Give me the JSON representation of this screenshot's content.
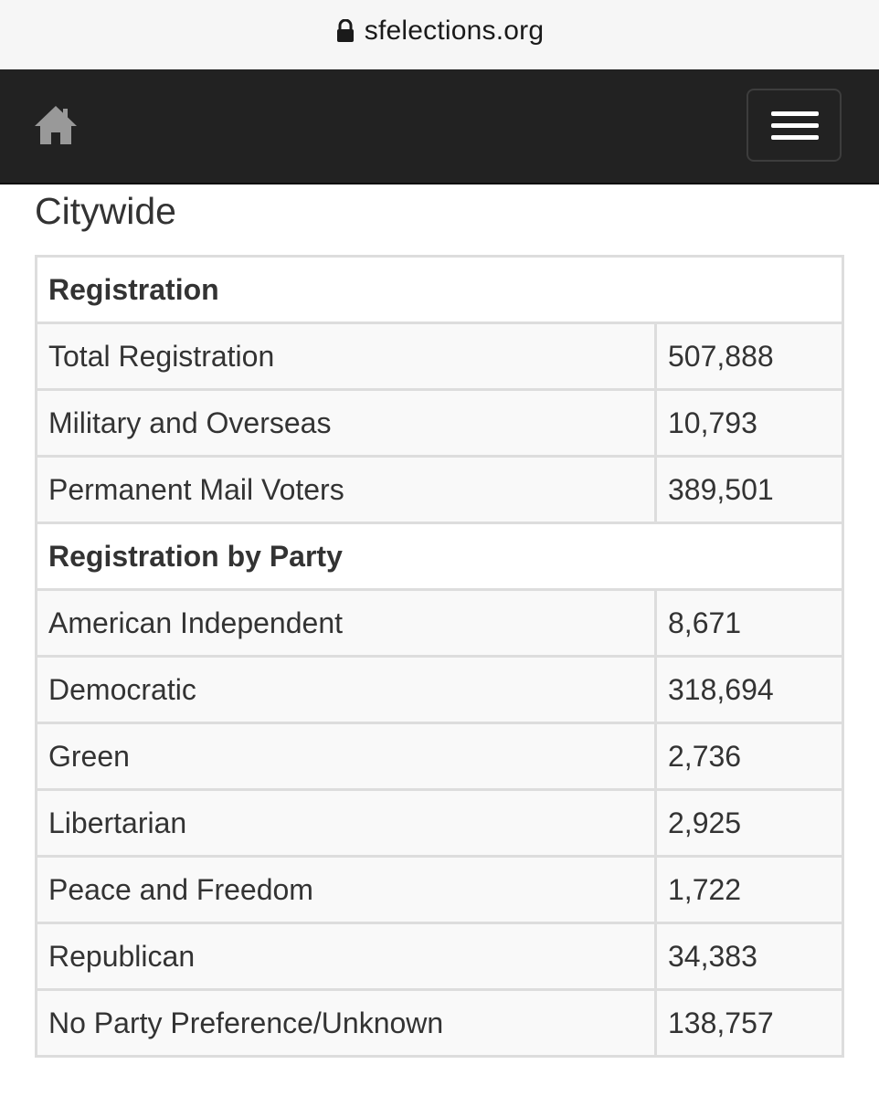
{
  "browser": {
    "url": "sfelections.org"
  },
  "navbar": {
    "home_icon": "home-icon",
    "menu_icon": "hamburger-menu-icon"
  },
  "page": {
    "title": "Citywide"
  },
  "table": {
    "registration_header": "Registration",
    "registration_rows": [
      {
        "label": "Total Registration",
        "value": "507,888"
      },
      {
        "label": "Military and Overseas",
        "value": "10,793"
      },
      {
        "label": "Permanent Mail Voters",
        "value": "389,501"
      }
    ],
    "party_header": "Registration by Party",
    "party_rows": [
      {
        "label": "American Independent",
        "value": "8,671"
      },
      {
        "label": "Democratic",
        "value": "318,694"
      },
      {
        "label": "Green",
        "value": "2,736"
      },
      {
        "label": "Libertarian",
        "value": "2,925"
      },
      {
        "label": "Peace and Freedom",
        "value": "1,722"
      },
      {
        "label": "Republican",
        "value": "34,383"
      },
      {
        "label": "No Party Preference/Unknown",
        "value": "138,757"
      }
    ]
  },
  "colors": {
    "navbar_bg": "#222222",
    "urlbar_bg": "#f6f6f6",
    "row_bg": "#f9f9f9",
    "border": "#dddddd",
    "text": "#333333"
  }
}
